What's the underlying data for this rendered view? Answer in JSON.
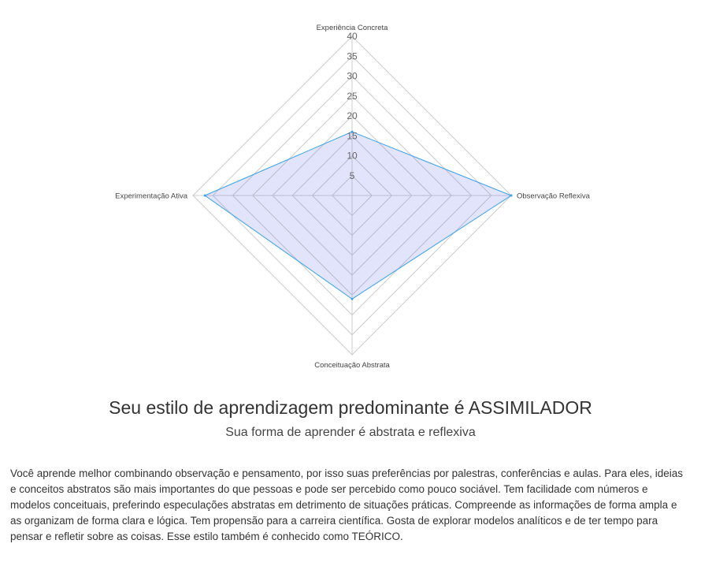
{
  "chart_data": {
    "type": "radar",
    "axes": [
      "Experiência Concreta",
      "Observação Reflexiva",
      "Conceituação Abstrata",
      "Experimentação Ativa"
    ],
    "ticks": [
      "5",
      "10",
      "15",
      "20",
      "25",
      "30",
      "35",
      "40"
    ],
    "range": [
      0,
      40
    ],
    "grid": true,
    "series": [
      {
        "values": [
          16,
          40,
          26,
          37
        ]
      }
    ],
    "colors": {
      "line": "#36a2eb",
      "fill": "rgba(110, 120, 240, 0.2)",
      "grid": "#cccccc"
    }
  },
  "result": {
    "title": "Seu estilo de aprendizagem predominante é ASSIMILADOR",
    "subtitle": "Sua forma de aprender é abstrata e reflexiva",
    "description": "Você aprende melhor combinando observação e pensamento, por isso suas preferências por palestras, conferências e aulas. Para eles, ideias e conceitos abstratos são mais importantes do que pessoas e pode ser percebido como pouco sociável. Tem facilidade com números e modelos conceituais, preferindo especulações abstratas em detrimento de situações práticas. Compreende as informações de forma ampla e as organizam de forma clara e lógica. Tem propensão para a carreira científica. Gosta de explorar modelos analíticos e de ter tempo para pensar e refletir sobre as coisas. Esse estilo também é conhecido como TEÓRICO."
  }
}
